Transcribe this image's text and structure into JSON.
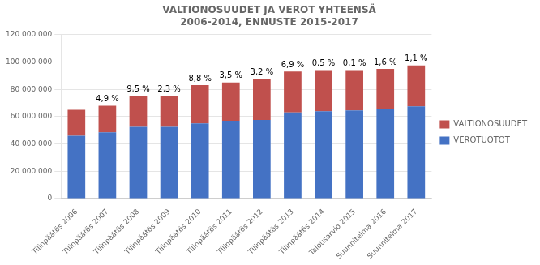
{
  "chart_data": {
    "type": "bar",
    "stacked": true,
    "title": "VALTIONOSUUDET JA VEROT YHTEENSÄ\n2006-2014, ENNUSTE 2015-2017",
    "categories": [
      "Tilinpäätös 2006",
      "Tilinpäätös 2007",
      "Tilinpäätös 2008",
      "Tilinpäätös 2009",
      "Tilinpäätös 2010",
      "Tilinpäätös 2011",
      "Tilinpäätös 2012",
      "Tilinpäätös 2013",
      "Tilinpäätös 2014",
      "Talousarvio 2015",
      "Suunnitelma 2016",
      "Suunnitelma 2017"
    ],
    "series": [
      {
        "name": "VEROTUOTOT",
        "color": "#4472C4",
        "values": [
          46000000,
          48500000,
          52500000,
          52500000,
          55000000,
          57000000,
          57500000,
          63000000,
          64000000,
          64500000,
          65500000,
          67500000
        ]
      },
      {
        "name": "VALTIONOSUUDET",
        "color": "#C0504D",
        "values": [
          19000000,
          19500000,
          22500000,
          22500000,
          28000000,
          28000000,
          30000000,
          30000000,
          30000000,
          29500000,
          29500000,
          30000000
        ]
      }
    ],
    "annotations": [
      {
        "x": "Tilinpäätös 2007",
        "text": "4,9 %"
      },
      {
        "x": "Tilinpäätös 2008",
        "text": "9,5 %"
      },
      {
        "x": "Tilinpäätös 2009",
        "text": "2,3 %"
      },
      {
        "x": "Tilinpäätös 2010",
        "text": "8,8 %"
      },
      {
        "x": "Tilinpäätös 2011",
        "text": "3,5 %"
      },
      {
        "x": "Tilinpäätös 2012",
        "text": "3,2 %"
      },
      {
        "x": "Tilinpäätös 2013",
        "text": "6,9 %"
      },
      {
        "x": "Tilinpäätös 2014",
        "text": "0,5 %"
      },
      {
        "x": "Talousarvio 2015",
        "text": "0,1 %"
      },
      {
        "x": "Suunnitelma 2016",
        "text": "1,6 %"
      },
      {
        "x": "Suunnitelma 2017",
        "text": "1,1 %"
      }
    ],
    "ylim": [
      0,
      120000000
    ],
    "yticks": [
      0,
      {
        "value": 20000000,
        "label": "20 000 000"
      },
      {
        "value": 40000000,
        "label": "40 000 000"
      },
      {
        "value": 60000000,
        "label": "60 000 000"
      },
      {
        "value": 80000000,
        "label": "80 000 000"
      },
      {
        "value": 100000000,
        "label": "100 000 000"
      },
      {
        "value": 120000000,
        "label": "120 000 000"
      }
    ],
    "grid": "y",
    "legend": "right"
  }
}
